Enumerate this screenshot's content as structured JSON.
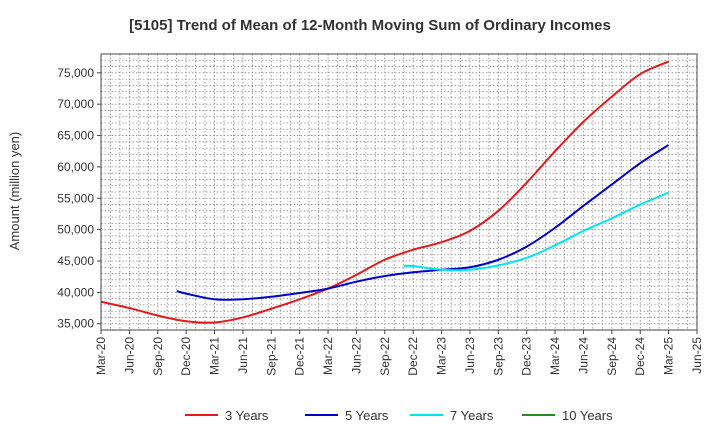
{
  "chart_data": {
    "type": "line",
    "title": "[5105]  Trend of Mean of 12-Month Moving Sum of Ordinary Incomes",
    "xlabel": "",
    "ylabel": "Amount (million yen)",
    "ylim": [
      34000,
      78000
    ],
    "yticks": [
      35000,
      40000,
      45000,
      50000,
      55000,
      60000,
      65000,
      70000,
      75000
    ],
    "ytick_labels": [
      "35,000",
      "40,000",
      "45,000",
      "50,000",
      "55,000",
      "60,000",
      "65,000",
      "70,000",
      "75,000"
    ],
    "xtick_labels": [
      "Mar-20",
      "Jun-20",
      "Sep-20",
      "Dec-20",
      "Mar-21",
      "Jun-21",
      "Sep-21",
      "Dec-21",
      "Mar-22",
      "Jun-22",
      "Sep-22",
      "Dec-22",
      "Mar-23",
      "Jun-23",
      "Sep-23",
      "Dec-23",
      "Mar-24",
      "Jun-24",
      "Sep-24",
      "Dec-24",
      "Mar-25",
      "Jun-25"
    ],
    "grid": true,
    "series": [
      {
        "name": "3 Years",
        "color": "#e31a1c",
        "points": [
          [
            0,
            38500
          ],
          [
            1,
            37500
          ],
          [
            2,
            36300
          ],
          [
            3,
            35400
          ],
          [
            4,
            35200
          ],
          [
            5,
            36000
          ],
          [
            6,
            37400
          ],
          [
            7,
            38900
          ],
          [
            8,
            40600
          ],
          [
            9,
            42800
          ],
          [
            10,
            45200
          ],
          [
            11,
            46800
          ],
          [
            12,
            48000
          ],
          [
            13,
            49800
          ],
          [
            14,
            53000
          ],
          [
            15,
            57500
          ],
          [
            16,
            62500
          ],
          [
            17,
            67200
          ],
          [
            18,
            71200
          ],
          [
            19,
            74800
          ],
          [
            20,
            76800
          ]
        ]
      },
      {
        "name": "5 Years",
        "color": "#0000cc",
        "points": [
          [
            2.67,
            40200
          ],
          [
            3,
            39800
          ],
          [
            4,
            38900
          ],
          [
            5,
            38900
          ],
          [
            6,
            39300
          ],
          [
            7,
            39900
          ],
          [
            8,
            40600
          ],
          [
            9,
            41700
          ],
          [
            10,
            42600
          ],
          [
            11,
            43200
          ],
          [
            12,
            43600
          ],
          [
            13,
            44000
          ],
          [
            14,
            45200
          ],
          [
            15,
            47300
          ],
          [
            16,
            50300
          ],
          [
            17,
            53800
          ],
          [
            18,
            57200
          ],
          [
            19,
            60600
          ],
          [
            20,
            63500
          ]
        ]
      },
      {
        "name": "7 Years",
        "color": "#00e5ee",
        "points": [
          [
            10.67,
            44200
          ],
          [
            11,
            44200
          ],
          [
            12,
            43600
          ],
          [
            13,
            43600
          ],
          [
            14,
            44300
          ],
          [
            15,
            45500
          ],
          [
            16,
            47500
          ],
          [
            17,
            49800
          ],
          [
            18,
            51800
          ],
          [
            19,
            54000
          ],
          [
            20,
            55900
          ]
        ]
      },
      {
        "name": "10 Years",
        "color": "#228b22",
        "points": []
      }
    ],
    "legend_position": "bottom"
  }
}
